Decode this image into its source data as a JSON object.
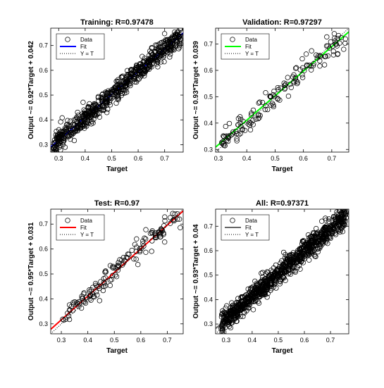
{
  "figure": {
    "background": "#ffffff"
  },
  "chart_data": [
    {
      "id": "training",
      "type": "scatter",
      "title": "Training: R=0.97478",
      "xlabel": "Target",
      "ylabel": "Output ~= 0.92*Target + 0.042",
      "xlim": [
        0.27,
        0.77
      ],
      "ylim": [
        0.27,
        0.77
      ],
      "xticks": [
        "0.3",
        "0.4",
        "0.5",
        "0.6",
        "0.7"
      ],
      "yticks": [
        "0.3",
        "0.4",
        "0.5",
        "0.6",
        "0.7"
      ],
      "fit": {
        "slope": 0.92,
        "intercept": 0.042,
        "color": "#0000ff"
      },
      "legend": {
        "position": "top-left",
        "entries": [
          "Data",
          "Fit",
          "Y = T"
        ]
      },
      "scatter": {
        "n": 700,
        "x_min": 0.28,
        "x_max": 0.76,
        "noise_sd": 0.022,
        "seed": 11
      }
    },
    {
      "id": "validation",
      "type": "scatter",
      "title": "Validation: R=0.97297",
      "xlabel": "Target",
      "ylabel": "Output ~= 0.93*Target + 0.039",
      "xlim": [
        0.29,
        0.76
      ],
      "ylim": [
        0.29,
        0.76
      ],
      "xticks": [
        "0.3",
        "0.4",
        "0.5",
        "0.6",
        "0.7"
      ],
      "yticks": [
        "0.3",
        "0.4",
        "0.5",
        "0.6",
        "0.7"
      ],
      "fit": {
        "slope": 0.93,
        "intercept": 0.039,
        "color": "#00ff00"
      },
      "legend": {
        "position": "top-left",
        "entries": [
          "Data",
          "Fit",
          "Y = T"
        ]
      },
      "scatter": {
        "n": 150,
        "x_min": 0.3,
        "x_max": 0.75,
        "noise_sd": 0.022,
        "seed": 23
      }
    },
    {
      "id": "test",
      "type": "scatter",
      "title": "Test: R=0.97",
      "xlabel": "Target",
      "ylabel": "Output ~= 0.95*Target + 0.031",
      "xlim": [
        0.26,
        0.76
      ],
      "ylim": [
        0.26,
        0.76
      ],
      "xticks": [
        "0.3",
        "0.4",
        "0.5",
        "0.6",
        "0.7"
      ],
      "yticks": [
        "0.3",
        "0.4",
        "0.5",
        "0.6",
        "0.7"
      ],
      "fit": {
        "slope": 0.95,
        "intercept": 0.031,
        "color": "#ff0000"
      },
      "legend": {
        "position": "top-left",
        "entries": [
          "Data",
          "Fit",
          "Y = T"
        ]
      },
      "scatter": {
        "n": 150,
        "x_min": 0.3,
        "x_max": 0.75,
        "noise_sd": 0.024,
        "seed": 37
      }
    },
    {
      "id": "all",
      "type": "scatter",
      "title": "All: R=0.97371",
      "xlabel": "Target",
      "ylabel": "Output ~= 0.93*Target + 0.04",
      "xlim": [
        0.26,
        0.77
      ],
      "ylim": [
        0.26,
        0.77
      ],
      "xticks": [
        "0.3",
        "0.4",
        "0.5",
        "0.6",
        "0.7"
      ],
      "yticks": [
        "0.3",
        "0.4",
        "0.5",
        "0.6",
        "0.7"
      ],
      "fit": {
        "slope": 0.93,
        "intercept": 0.04,
        "color": "#666666"
      },
      "legend": {
        "position": "top-left",
        "entries": [
          "Data",
          "Fit",
          "Y = T"
        ]
      },
      "scatter": {
        "n": 1000,
        "x_min": 0.28,
        "x_max": 0.76,
        "noise_sd": 0.022,
        "seed": 53
      }
    }
  ]
}
